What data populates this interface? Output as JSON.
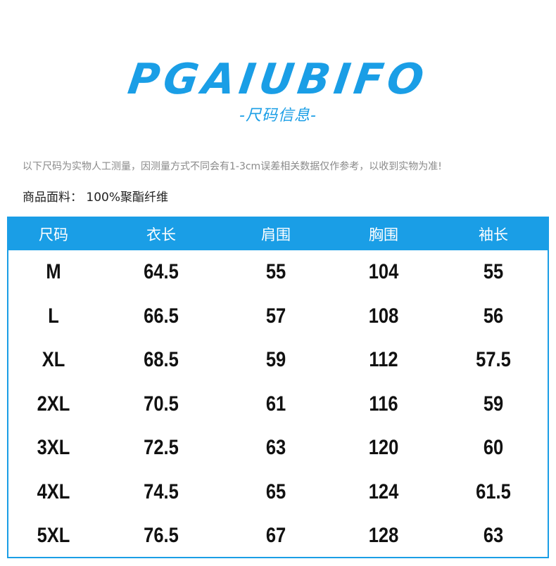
{
  "header": {
    "brand": "PGAIUBIFO",
    "subtitle": "-尺码信息-"
  },
  "note": "以下尺码为实物人工测量，因测量方式不同会有1-3cm误差相关数据仅作参考，以收到实物为准!",
  "material": "商品面料：  100%聚酯纤维",
  "colors": {
    "accent": "#1a9ee6",
    "text": "#111111",
    "note": "#8a8a8a"
  },
  "table": {
    "headers": [
      "尺码",
      "衣长",
      "肩围",
      "胸围",
      "袖长"
    ],
    "rows": [
      [
        "M",
        "64.5",
        "55",
        "104",
        "55"
      ],
      [
        "L",
        "66.5",
        "57",
        "108",
        "56"
      ],
      [
        "XL",
        "68.5",
        "59",
        "112",
        "57.5"
      ],
      [
        "2XL",
        "70.5",
        "61",
        "116",
        "59"
      ],
      [
        "3XL",
        "72.5",
        "63",
        "120",
        "60"
      ],
      [
        "4XL",
        "74.5",
        "65",
        "124",
        "61.5"
      ],
      [
        "5XL",
        "76.5",
        "67",
        "128",
        "63"
      ]
    ]
  }
}
